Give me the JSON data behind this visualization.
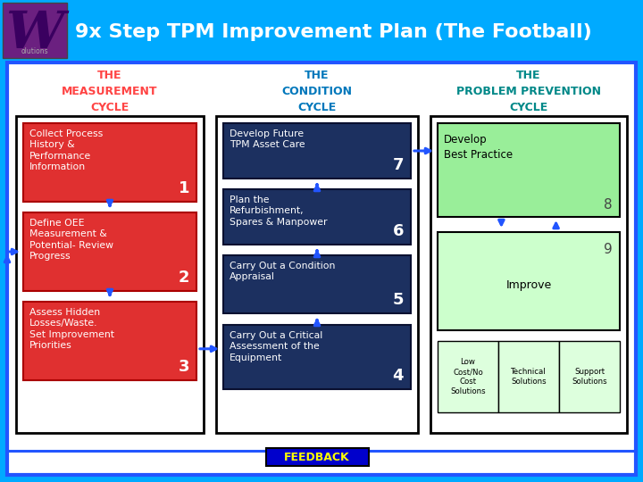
{
  "title": "9x Step TPM Improvement Plan (The Football)",
  "bg_color": "#00AAFF",
  "main_bg": "#FFFFFF",
  "col1_header": "THE\nMEASUREMENT\nCYCLE",
  "col2_header": "THE\nCONDITION\nCYCLE",
  "col3_header": "THE\nPROBLEM PREVENTION\nCYCLE",
  "col1_header_color": "#FF4444",
  "col2_header_color": "#0077BB",
  "col3_header_color": "#008888",
  "boxes_col1": [
    {
      "text": "Collect Process\nHistory &\nPerformance\nInformation",
      "num": "1"
    },
    {
      "text": "Define OEE\nMeasurement &\nPotential- Review\nProgress",
      "num": "2"
    },
    {
      "text": "Assess Hidden\nLosses/Waste.\nSet Improvement\nPriorities",
      "num": "3"
    }
  ],
  "boxes_col2": [
    {
      "text": "Develop Future\nTPM Asset Care",
      "num": "7"
    },
    {
      "text": "Plan the\nRefurbishment,\nSpares & Manpower",
      "num": "6"
    },
    {
      "text": "Carry Out a Condition\nAppraisal",
      "num": "5"
    },
    {
      "text": "Carry Out a Critical\nAssessment of the\nEquipment",
      "num": "4"
    }
  ],
  "feedback_text": "FEEDBACK",
  "feedback_bg": "#0000CC",
  "feedback_fg": "#FFFF00",
  "arrow_color": "#2255FF",
  "red_box": "#E03030",
  "blue_box": "#1C3060",
  "green_box_top": "#99EE99",
  "green_box_mid": "#CCFFCC",
  "green_box_btm": "#DDFFDD"
}
